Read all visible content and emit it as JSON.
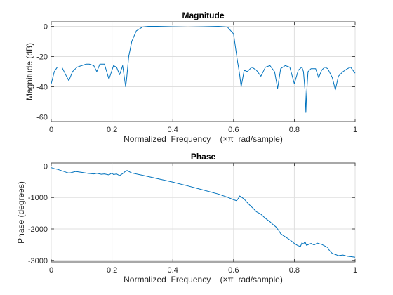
{
  "chart_data": [
    {
      "type": "line",
      "title": "Magnitude",
      "xlabel": "Normalized  Frequency    (×π  rad/sample)",
      "ylabel": "Magnitude (dB)",
      "xlim": [
        0,
        1
      ],
      "ylim": [
        -63,
        3
      ],
      "xticks": [
        0,
        0.2,
        0.4,
        0.6,
        0.8,
        1
      ],
      "xtick_labels": [
        "0",
        "0.2",
        "0.4",
        "0.6",
        "0.8",
        "1"
      ],
      "yticks": [
        0,
        -20,
        -40,
        -60
      ],
      "ytick_labels": [
        "0",
        "-20",
        "-40",
        "-60"
      ],
      "grid": true,
      "line_color": "#0072bd",
      "x": [
        0,
        0.01,
        0.02,
        0.035,
        0.05,
        0.058,
        0.07,
        0.085,
        0.1,
        0.115,
        0.125,
        0.14,
        0.15,
        0.16,
        0.175,
        0.19,
        0.205,
        0.215,
        0.225,
        0.235,
        0.24,
        0.245,
        0.248,
        0.255,
        0.265,
        0.28,
        0.3,
        0.32,
        0.35,
        0.4,
        0.45,
        0.5,
        0.55,
        0.58,
        0.6,
        0.605,
        0.612,
        0.617,
        0.62,
        0.625,
        0.635,
        0.645,
        0.66,
        0.675,
        0.69,
        0.705,
        0.72,
        0.735,
        0.745,
        0.755,
        0.77,
        0.785,
        0.8,
        0.813,
        0.825,
        0.83,
        0.835,
        0.838,
        0.84,
        0.845,
        0.855,
        0.87,
        0.88,
        0.89,
        0.9,
        0.91,
        0.925,
        0.935,
        0.945,
        0.96,
        0.975,
        0.985,
        1.0
      ],
      "y": [
        -38,
        -30,
        -27,
        -27,
        -33,
        -36,
        -30,
        -27,
        -26,
        -25,
        -25,
        -26,
        -30,
        -25,
        -25,
        -35,
        -26,
        -27,
        -32,
        -26,
        -33,
        -40,
        -35,
        -20,
        -10,
        -3,
        -0.5,
        0,
        0,
        -0.3,
        -0.5,
        -0.3,
        0,
        -0.5,
        -5,
        -12,
        -22,
        -28,
        -32,
        -40,
        -29,
        -30,
        -27,
        -29,
        -33,
        -27,
        -26,
        -30,
        -41,
        -28,
        -26,
        -27,
        -38,
        -29,
        -27,
        -30,
        -42,
        -57,
        -46,
        -30,
        -28,
        -28,
        -34,
        -29,
        -27,
        -28,
        -34,
        -42,
        -33,
        -30,
        -28,
        -27,
        -31
      ]
    },
    {
      "type": "line",
      "title": "Phase",
      "xlabel": "Normalized  Frequency    (×π  rad/sample)",
      "ylabel": "Phase (degrees)",
      "xlim": [
        0,
        1
      ],
      "ylim": [
        -3050,
        100
      ],
      "xticks": [
        0,
        0.2,
        0.4,
        0.6,
        0.8,
        1
      ],
      "xtick_labels": [
        "0",
        "0.2",
        "0.4",
        "0.6",
        "0.8",
        "1"
      ],
      "yticks": [
        0,
        -1000,
        -2000,
        -3000
      ],
      "ytick_labels": [
        "0",
        "-1000",
        "-2000",
        "-3000"
      ],
      "grid": true,
      "line_color": "#0072bd",
      "x": [
        0,
        0.01,
        0.02,
        0.035,
        0.045,
        0.05,
        0.058,
        0.065,
        0.08,
        0.1,
        0.12,
        0.14,
        0.15,
        0.165,
        0.175,
        0.19,
        0.2,
        0.205,
        0.215,
        0.225,
        0.235,
        0.24,
        0.245,
        0.25,
        0.255,
        0.265,
        0.3,
        0.35,
        0.4,
        0.45,
        0.5,
        0.55,
        0.58,
        0.6,
        0.61,
        0.617,
        0.62,
        0.625,
        0.635,
        0.645,
        0.655,
        0.665,
        0.675,
        0.69,
        0.7,
        0.71,
        0.72,
        0.73,
        0.74,
        0.75,
        0.755,
        0.762,
        0.77,
        0.78,
        0.79,
        0.8,
        0.81,
        0.82,
        0.825,
        0.83,
        0.835,
        0.84,
        0.845,
        0.855,
        0.865,
        0.875,
        0.89,
        0.9,
        0.91,
        0.915,
        0.925,
        0.935,
        0.945,
        0.96,
        0.975,
        0.985,
        1.0
      ],
      "y": [
        -50,
        -80,
        -100,
        -150,
        -180,
        -200,
        -220,
        -210,
        -170,
        -200,
        -230,
        -250,
        -230,
        -260,
        -250,
        -280,
        -220,
        -270,
        -250,
        -300,
        -240,
        -200,
        -160,
        -140,
        -170,
        -220,
        -290,
        -400,
        -510,
        -630,
        -760,
        -890,
        -990,
        -1070,
        -1100,
        -1010,
        -950,
        -980,
        -1050,
        -1160,
        -1260,
        -1350,
        -1450,
        -1530,
        -1620,
        -1700,
        -1770,
        -1860,
        -1940,
        -2070,
        -2150,
        -2200,
        -2250,
        -2310,
        -2380,
        -2460,
        -2520,
        -2560,
        -2440,
        -2480,
        -2400,
        -2520,
        -2500,
        -2460,
        -2510,
        -2450,
        -2490,
        -2540,
        -2590,
        -2680,
        -2780,
        -2810,
        -2850,
        -2830,
        -2870,
        -2880,
        -2900
      ]
    }
  ]
}
